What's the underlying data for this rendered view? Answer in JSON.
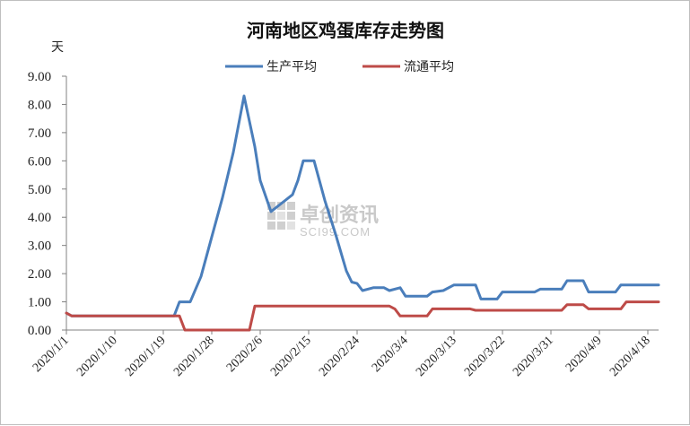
{
  "chart_data": {
    "type": "line",
    "title": "河南地区鸡蛋库存走势图",
    "ylabel": "天",
    "xlabel": "",
    "ylim": [
      0,
      9
    ],
    "y_ticks": [
      "0.00",
      "1.00",
      "2.00",
      "3.00",
      "4.00",
      "5.00",
      "6.00",
      "7.00",
      "8.00",
      "9.00"
    ],
    "x_start": "2020-01-01",
    "x_end": "2020-04-20",
    "x_tick_labels": [
      "2020/1/1",
      "2020/1/10",
      "2020/1/19",
      "2020/1/28",
      "2020/2/6",
      "2020/2/15",
      "2020/2/24",
      "2020/3/4",
      "2020/3/13",
      "2020/3/22",
      "2020/3/31",
      "2020/4/9",
      "2020/4/18"
    ],
    "x_tick_dates": [
      "2020-01-01",
      "2020-01-10",
      "2020-01-19",
      "2020-01-28",
      "2020-02-06",
      "2020-02-15",
      "2020-02-24",
      "2020-03-04",
      "2020-03-13",
      "2020-03-22",
      "2020-03-31",
      "2020-04-09",
      "2020-04-18"
    ],
    "grid": false,
    "legend_position": "top",
    "series": [
      {
        "name": "生产平均",
        "color": "#4a7ebb",
        "points": [
          [
            "2020-01-01",
            0.6
          ],
          [
            "2020-01-02",
            0.5
          ],
          [
            "2020-01-21",
            0.5
          ],
          [
            "2020-01-22",
            1.0
          ],
          [
            "2020-01-24",
            1.0
          ],
          [
            "2020-01-26",
            1.9
          ],
          [
            "2020-01-28",
            3.3
          ],
          [
            "2020-01-30",
            4.7
          ],
          [
            "2020-02-01",
            6.3
          ],
          [
            "2020-02-03",
            8.3
          ],
          [
            "2020-02-05",
            6.5
          ],
          [
            "2020-02-06",
            5.3
          ],
          [
            "2020-02-08",
            4.2
          ],
          [
            "2020-02-10",
            4.5
          ],
          [
            "2020-02-12",
            4.8
          ],
          [
            "2020-02-13",
            5.3
          ],
          [
            "2020-02-14",
            6.0
          ],
          [
            "2020-02-16",
            6.0
          ],
          [
            "2020-02-18",
            4.6
          ],
          [
            "2020-02-20",
            3.4
          ],
          [
            "2020-02-22",
            2.1
          ],
          [
            "2020-02-23",
            1.7
          ],
          [
            "2020-02-24",
            1.65
          ],
          [
            "2020-02-25",
            1.4
          ],
          [
            "2020-02-27",
            1.5
          ],
          [
            "2020-02-29",
            1.5
          ],
          [
            "2020-03-01",
            1.4
          ],
          [
            "2020-03-03",
            1.5
          ],
          [
            "2020-03-04",
            1.2
          ],
          [
            "2020-03-08",
            1.2
          ],
          [
            "2020-03-09",
            1.35
          ],
          [
            "2020-03-11",
            1.4
          ],
          [
            "2020-03-13",
            1.6
          ],
          [
            "2020-03-17",
            1.6
          ],
          [
            "2020-03-18",
            1.1
          ],
          [
            "2020-03-21",
            1.1
          ],
          [
            "2020-03-22",
            1.35
          ],
          [
            "2020-03-28",
            1.35
          ],
          [
            "2020-03-29",
            1.45
          ],
          [
            "2020-04-02",
            1.45
          ],
          [
            "2020-04-03",
            1.75
          ],
          [
            "2020-04-06",
            1.75
          ],
          [
            "2020-04-07",
            1.35
          ],
          [
            "2020-04-12",
            1.35
          ],
          [
            "2020-04-13",
            1.6
          ],
          [
            "2020-04-20",
            1.6
          ]
        ]
      },
      {
        "name": "流通平均",
        "color": "#be4b48",
        "points": [
          [
            "2020-01-01",
            0.6
          ],
          [
            "2020-01-02",
            0.5
          ],
          [
            "2020-01-22",
            0.5
          ],
          [
            "2020-01-23",
            0.0
          ],
          [
            "2020-02-04",
            0.0
          ],
          [
            "2020-02-05",
            0.85
          ],
          [
            "2020-03-01",
            0.85
          ],
          [
            "2020-03-02",
            0.75
          ],
          [
            "2020-03-03",
            0.5
          ],
          [
            "2020-03-08",
            0.5
          ],
          [
            "2020-03-09",
            0.75
          ],
          [
            "2020-03-16",
            0.75
          ],
          [
            "2020-03-17",
            0.7
          ],
          [
            "2020-04-02",
            0.7
          ],
          [
            "2020-04-03",
            0.9
          ],
          [
            "2020-04-06",
            0.9
          ],
          [
            "2020-04-07",
            0.75
          ],
          [
            "2020-04-13",
            0.75
          ],
          [
            "2020-04-14",
            1.0
          ],
          [
            "2020-04-20",
            1.0
          ]
        ]
      }
    ]
  },
  "watermark": {
    "text": "卓创资讯",
    "sub": "SCI99.COM"
  }
}
